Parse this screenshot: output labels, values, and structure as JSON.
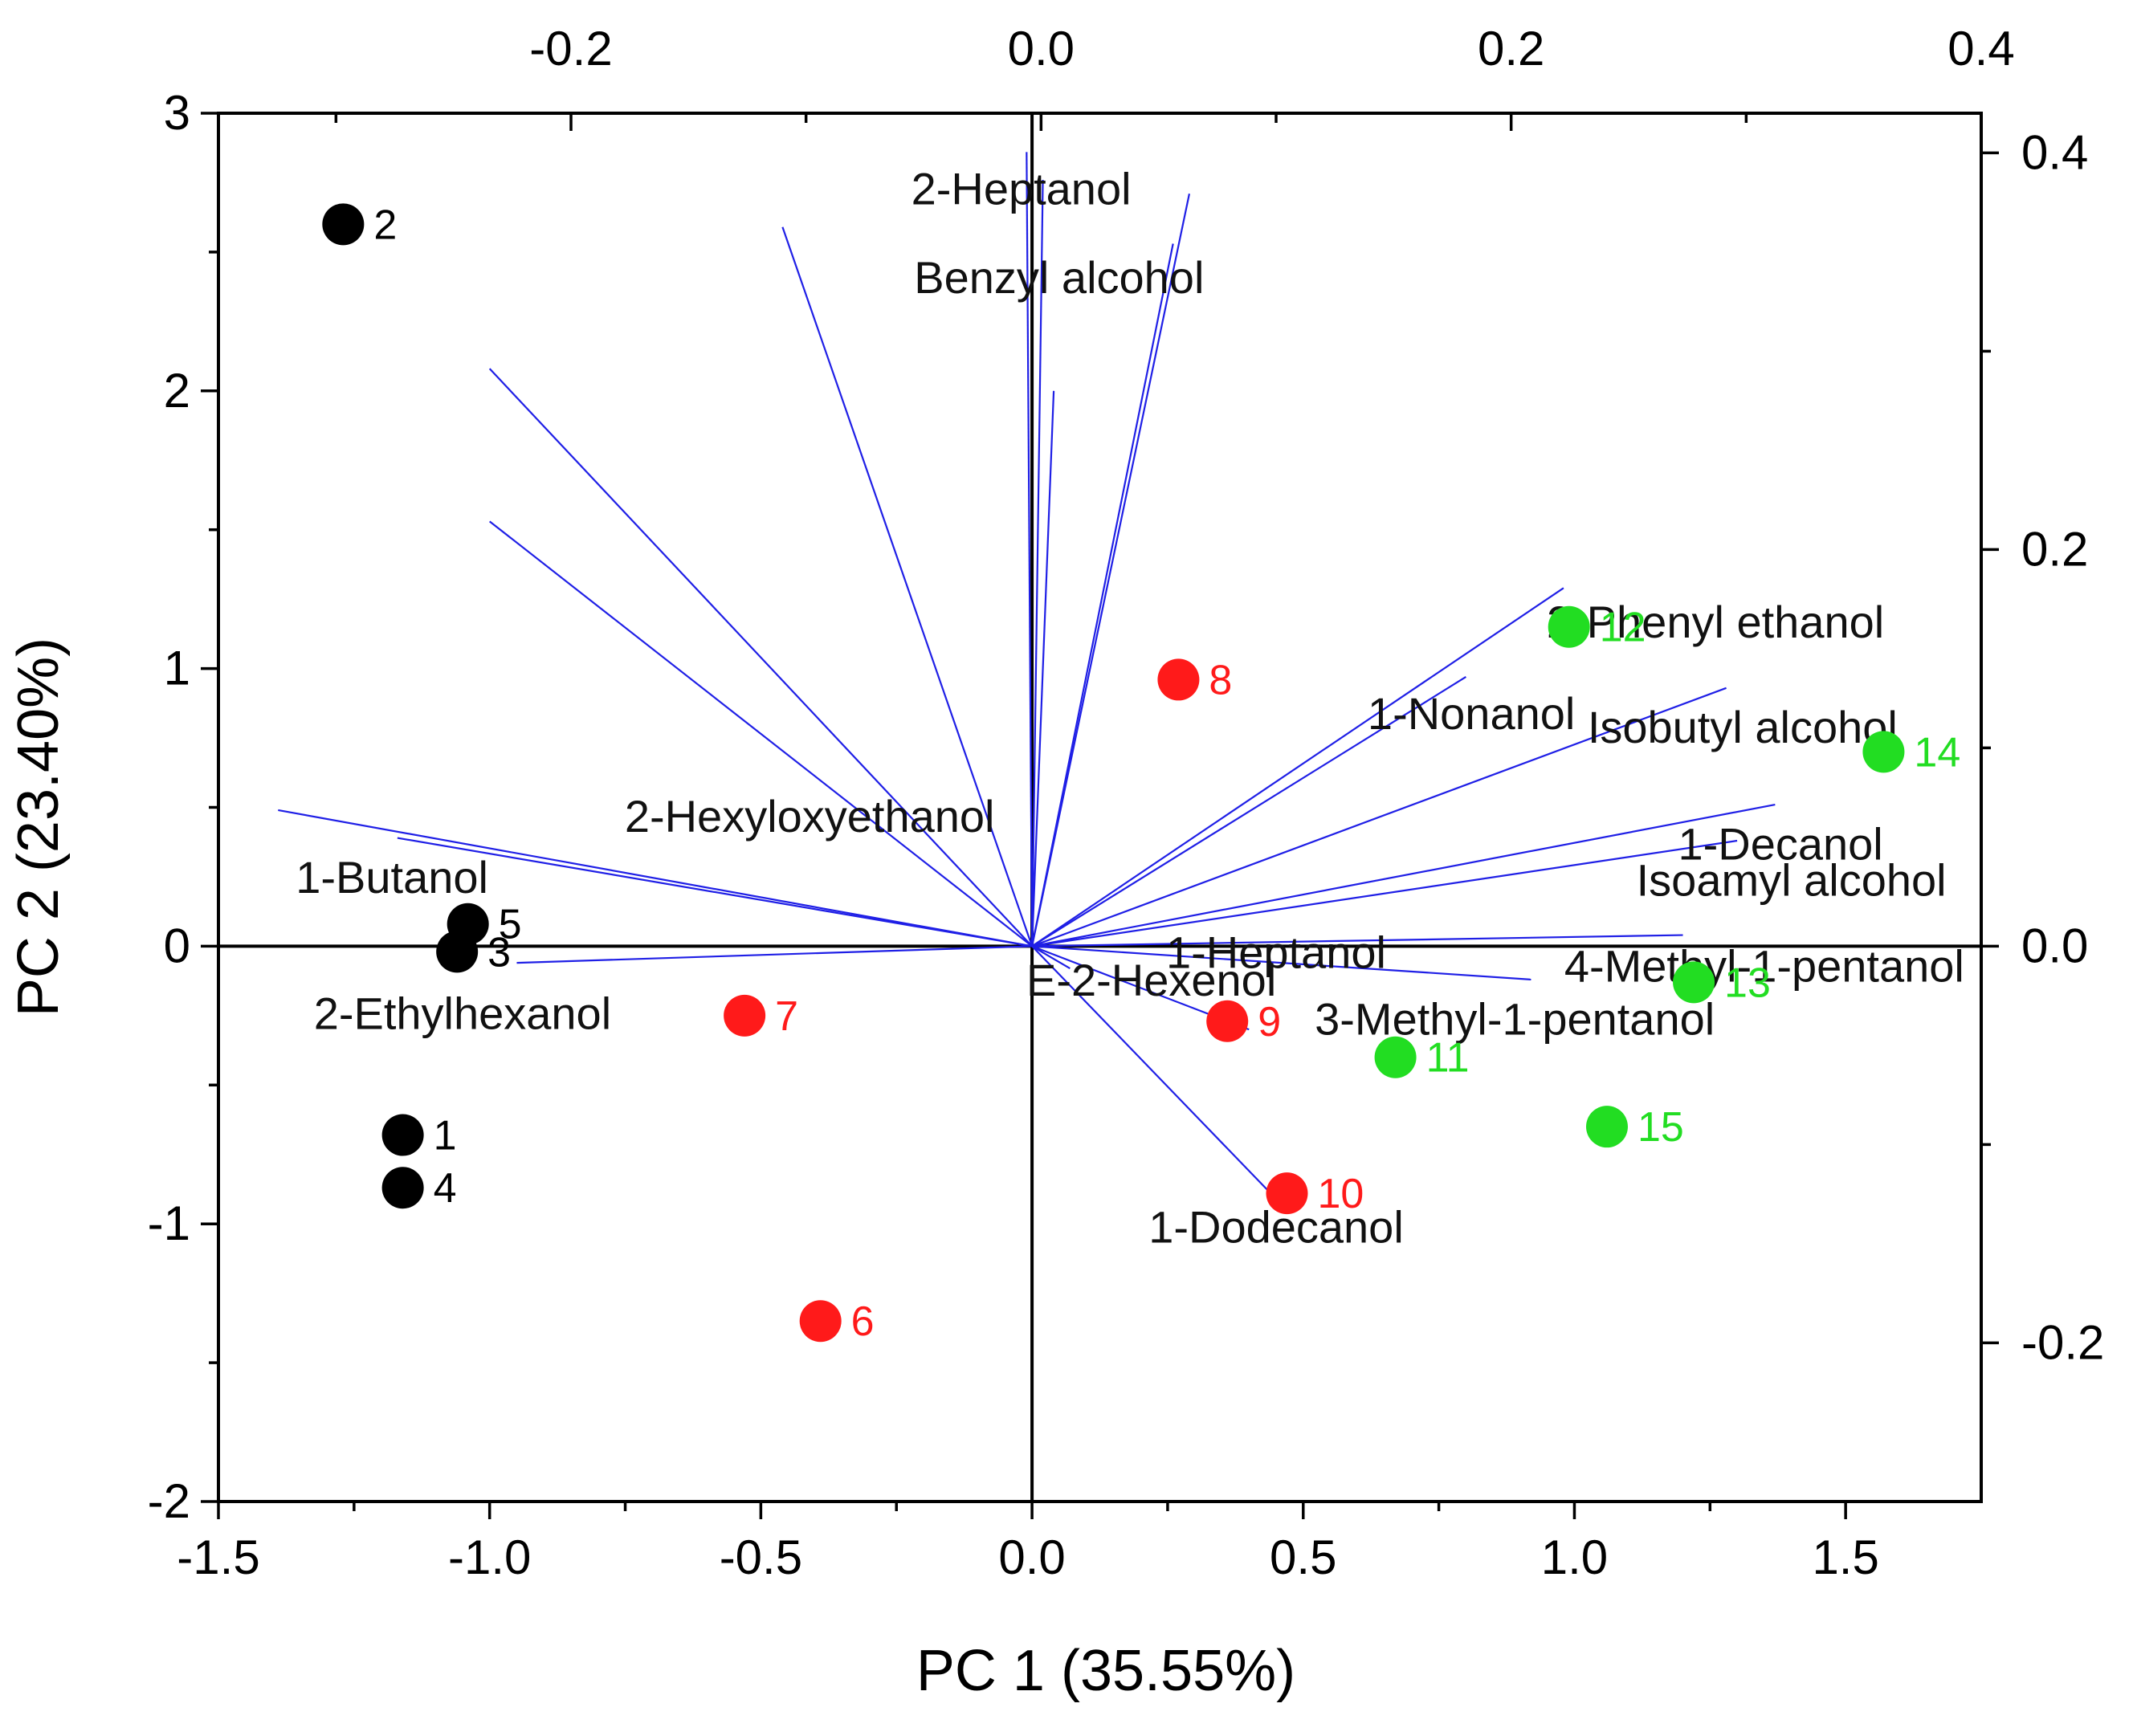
{
  "chart_data": {
    "type": "scatter",
    "subtype": "pca-biplot",
    "xlabel": "PC 1 (35.55%)",
    "ylabel": "PC 2 (23.40%)",
    "xlim": [
      -1.5,
      1.75
    ],
    "ylim": [
      -2,
      3
    ],
    "x_ticks": [
      -1.5,
      -1.0,
      -0.5,
      0.0,
      0.5,
      1.0,
      1.5
    ],
    "y_ticks": [
      -2,
      -1,
      0,
      1,
      2,
      3
    ],
    "x_tick_labels": [
      "-1.5",
      "-1.0",
      "-0.5",
      "0.0",
      "0.5",
      "1.0",
      "1.5"
    ],
    "y_tick_labels": [
      "-2",
      "-1",
      "0",
      "1",
      "2",
      "3"
    ],
    "top_axis": {
      "range": [
        -0.35,
        0.4
      ],
      "ticks": [
        -0.2,
        0.0,
        0.2,
        0.4
      ],
      "tick_labels": [
        "-0.2",
        "0.0",
        "0.2",
        "0.4"
      ]
    },
    "right_axis": {
      "range": [
        -0.28,
        0.42
      ],
      "ticks": [
        -0.2,
        0.0,
        0.2,
        0.4
      ],
      "tick_labels": [
        "-0.2",
        "0.0",
        "0.2",
        "0.4"
      ]
    },
    "group_colors": {
      "black": "#000000",
      "red": "#ff1a1a",
      "green": "#22dd22"
    },
    "loading_color": "#1f1fe6",
    "samples": [
      {
        "label": "1",
        "x": -1.16,
        "y": -0.68,
        "group": "black"
      },
      {
        "label": "2",
        "x": -1.27,
        "y": 2.6,
        "group": "black"
      },
      {
        "label": "3",
        "x": -1.06,
        "y": -0.02,
        "group": "black"
      },
      {
        "label": "4",
        "x": -1.16,
        "y": -0.87,
        "group": "black"
      },
      {
        "label": "5",
        "x": -1.04,
        "y": 0.08,
        "group": "black"
      },
      {
        "label": "6",
        "x": -0.39,
        "y": -1.35,
        "group": "red"
      },
      {
        "label": "7",
        "x": -0.53,
        "y": -0.25,
        "group": "red"
      },
      {
        "label": "8",
        "x": 0.27,
        "y": 0.96,
        "group": "red"
      },
      {
        "label": "9",
        "x": 0.36,
        "y": -0.27,
        "group": "red"
      },
      {
        "label": "10",
        "x": 0.47,
        "y": -0.89,
        "group": "red"
      },
      {
        "label": "11",
        "x": 0.67,
        "y": -0.4,
        "group": "green"
      },
      {
        "label": "12",
        "x": 0.99,
        "y": 1.15,
        "group": "green"
      },
      {
        "label": "13",
        "x": 1.22,
        "y": -0.13,
        "group": "green"
      },
      {
        "label": "14",
        "x": 1.57,
        "y": 0.7,
        "group": "green"
      },
      {
        "label": "15",
        "x": 1.06,
        "y": -0.65,
        "group": "green"
      }
    ],
    "loadings": [
      {
        "name": "2-Heptanol",
        "x": -0.01,
        "y": 2.86
      },
      {
        "name": "Benzyl alcohol",
        "x": 0.29,
        "y": 2.71
      },
      {
        "name": "",
        "x": 0.26,
        "y": 2.53
      },
      {
        "name": "",
        "x": 0.02,
        "y": 2.76
      },
      {
        "name": "",
        "x": 0.04,
        "y": 2.0
      },
      {
        "name": "",
        "x": -0.46,
        "y": 2.59
      },
      {
        "name": "",
        "x": -1.0,
        "y": 2.08
      },
      {
        "name": "2-Hexyloxyethanol",
        "x": -1.0,
        "y": 1.53
      },
      {
        "name": "1-Butanol",
        "x": -1.39,
        "y": 0.49
      },
      {
        "name": "",
        "x": -1.17,
        "y": 0.39
      },
      {
        "name": "2-Ethylhexanol",
        "x": -0.95,
        "y": -0.06
      },
      {
        "name": "2-Phenyl ethanol",
        "x": 0.98,
        "y": 1.29
      },
      {
        "name": "1-Nonanol",
        "x": 0.8,
        "y": 0.97
      },
      {
        "name": "Isobutyl alcohol",
        "x": 1.28,
        "y": 0.93
      },
      {
        "name": "1-Decanol",
        "x": 1.37,
        "y": 0.51
      },
      {
        "name": "Isoamyl alcohol",
        "x": 1.3,
        "y": 0.38
      },
      {
        "name": "1-Heptanol",
        "x": 1.2,
        "y": 0.04
      },
      {
        "name": "4-Methyl-1-pentanol",
        "x": 0.92,
        "y": -0.12
      },
      {
        "name": "E-2-Hexenol",
        "x": 0.07,
        "y": -0.08
      },
      {
        "name": "3-Methyl-1-pentanol",
        "x": 0.4,
        "y": -0.3
      },
      {
        "name": "1-Dodecanol",
        "x": 0.44,
        "y": -0.89
      }
    ],
    "variable_labels": [
      {
        "text": "2-Heptanol",
        "x": -0.02,
        "y": 2.73
      },
      {
        "text": "Benzyl alcohol",
        "x": 0.05,
        "y": 2.41
      },
      {
        "text": "2-Phenyl ethanol",
        "x": 1.26,
        "y": 1.17
      },
      {
        "text": "1-Nonanol",
        "x": 0.81,
        "y": 0.84
      },
      {
        "text": "Isobutyl alcohol",
        "x": 1.31,
        "y": 0.79
      },
      {
        "text": "1-Decanol",
        "x": 1.38,
        "y": 0.37
      },
      {
        "text": "Isoamyl alcohol",
        "x": 1.4,
        "y": 0.24
      },
      {
        "text": "2-Hexyloxyethanol",
        "x": -0.41,
        "y": 0.47
      },
      {
        "text": "1-Butanol",
        "x": -1.18,
        "y": 0.25
      },
      {
        "text": "1-Heptanol",
        "x": 0.45,
        "y": -0.02
      },
      {
        "text": "E-2-Hexenol",
        "x": 0.22,
        "y": -0.12
      },
      {
        "text": "4-Methyl-1-pentanol",
        "x": 1.35,
        "y": -0.07
      },
      {
        "text": "3-Methyl-1-pentanol",
        "x": 0.89,
        "y": -0.26
      },
      {
        "text": "2-Ethylhexanol",
        "x": -1.05,
        "y": -0.24
      },
      {
        "text": "1-Dodecanol",
        "x": 0.45,
        "y": -1.01
      }
    ]
  }
}
